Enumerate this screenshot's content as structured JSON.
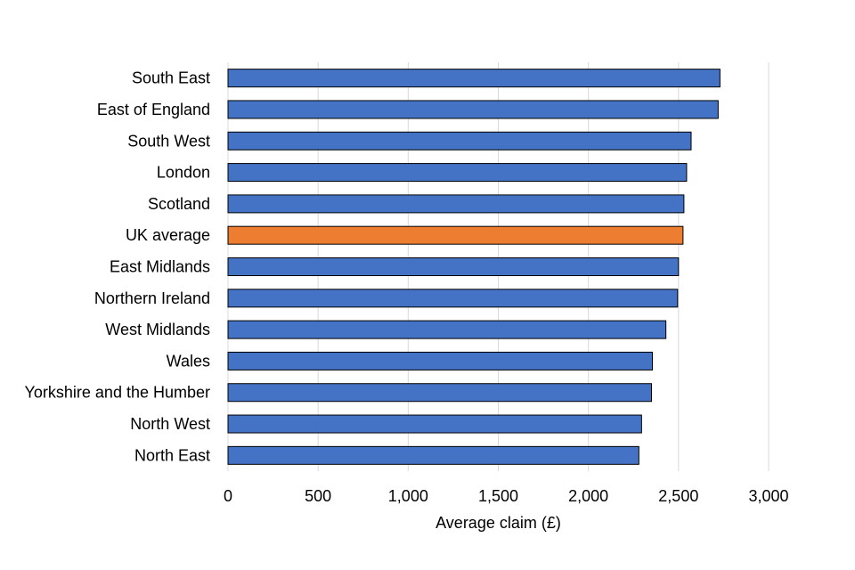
{
  "chart_data": {
    "type": "bar",
    "orientation": "horizontal",
    "title": "",
    "xlabel": "Average claim (£)",
    "ylabel": "",
    "xlim": [
      0,
      3000
    ],
    "x_ticks": [
      0,
      500,
      1000,
      1500,
      2000,
      2500,
      3000
    ],
    "x_tick_labels": [
      "0",
      "500",
      "1,000",
      "1,500",
      "2,000",
      "2,500",
      "3,000"
    ],
    "grid": true,
    "legend": false,
    "categories": [
      "South East",
      "East of England",
      "South West",
      "London",
      "Scotland",
      "UK average",
      "East Midlands",
      "Northern Ireland",
      "West Midlands",
      "Wales",
      "Yorkshire and the Humber",
      "North West",
      "North East"
    ],
    "values": [
      2730,
      2720,
      2570,
      2545,
      2530,
      2525,
      2500,
      2495,
      2430,
      2355,
      2350,
      2295,
      2280
    ],
    "highlight_category": "UK average",
    "colors": {
      "bar": "#4472C4",
      "highlight": "#ED7D31",
      "bar_outline": "#000000",
      "grid": "#D9D9D9"
    }
  }
}
